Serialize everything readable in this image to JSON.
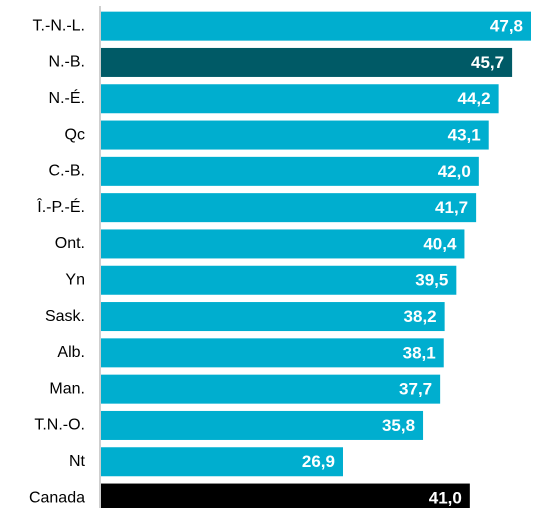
{
  "chart_data": {
    "type": "barh",
    "categories": [
      "T.-N.-L.",
      "N.-B.",
      "N.-É.",
      "Qc",
      "C.-B.",
      "Î.-P.-É.",
      "Ont.",
      "Yn",
      "Sask.",
      "Alb.",
      "Man.",
      "T.N.-O.",
      "Nt",
      "Canada"
    ],
    "values": [
      47.8,
      45.7,
      44.2,
      43.1,
      42.0,
      41.7,
      40.4,
      39.5,
      38.2,
      38.1,
      37.7,
      35.8,
      26.9,
      41.0
    ],
    "value_labels": [
      "47,8",
      "45,7",
      "44,2",
      "43,1",
      "42,0",
      "41,7",
      "40,4",
      "39,5",
      "38,2",
      "38,1",
      "37,7",
      "35,8",
      "26,9",
      "41,0"
    ],
    "colors": [
      "#00aecf",
      "#005a66",
      "#00aecf",
      "#00aecf",
      "#00aecf",
      "#00aecf",
      "#00aecf",
      "#00aecf",
      "#00aecf",
      "#00aecf",
      "#00aecf",
      "#00aecf",
      "#00aecf",
      "#000000"
    ]
  }
}
